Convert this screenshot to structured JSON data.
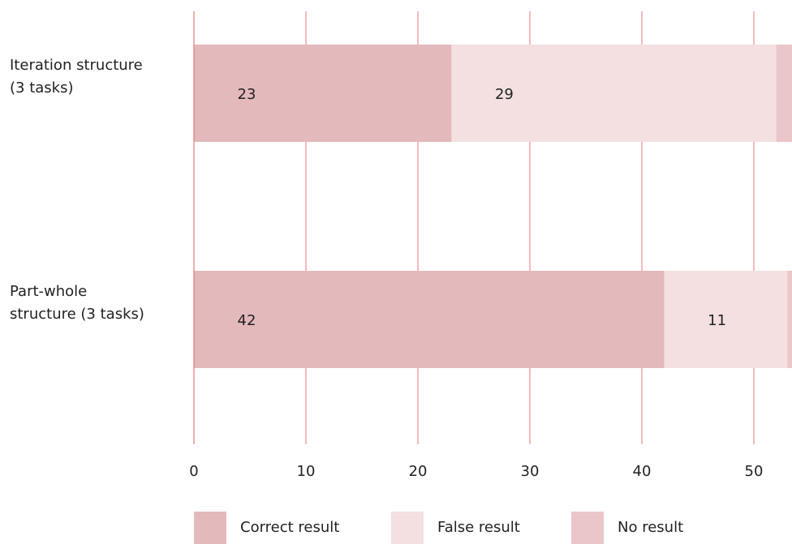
{
  "chart_data": {
    "type": "bar",
    "orientation": "horizontal",
    "stacked": true,
    "categories": [
      [
        "Iteration structure",
        "(3 tasks)"
      ],
      [
        "Part-whole",
        "structure (3 tasks)"
      ]
    ],
    "series": [
      {
        "name": "Correct result",
        "values": [
          23,
          42
        ],
        "color": "#e3b9bc"
      },
      {
        "name": "False result",
        "values": [
          29,
          11
        ],
        "color": "#f4e0e0"
      },
      {
        "name": "No result",
        "values": [
          2,
          1
        ],
        "color": "#eac6c9"
      }
    ],
    "xticks": [
      0,
      10,
      20,
      30,
      40,
      50
    ],
    "xlim": [
      0,
      53.7
    ],
    "grid": true,
    "grid_color": "#e8777a",
    "legend_position": "bottom",
    "title": "",
    "xlabel": "",
    "ylabel": ""
  }
}
